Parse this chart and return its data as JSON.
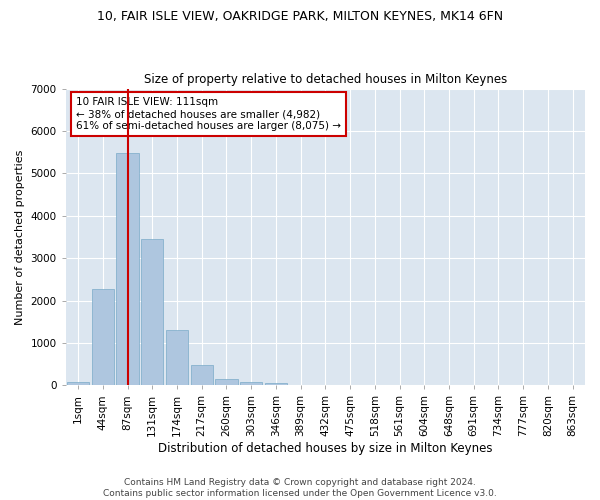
{
  "title1": "10, FAIR ISLE VIEW, OAKRIDGE PARK, MILTON KEYNES, MK14 6FN",
  "title2": "Size of property relative to detached houses in Milton Keynes",
  "xlabel": "Distribution of detached houses by size in Milton Keynes",
  "ylabel": "Number of detached properties",
  "footer1": "Contains HM Land Registry data © Crown copyright and database right 2024.",
  "footer2": "Contains public sector information licensed under the Open Government Licence v3.0.",
  "annotation_line1": "10 FAIR ISLE VIEW: 111sqm",
  "annotation_line2": "← 38% of detached houses are smaller (4,982)",
  "annotation_line3": "61% of semi-detached houses are larger (8,075) →",
  "bar_color": "#aec6df",
  "bar_edge_color": "#7aaac8",
  "red_line_color": "#cc0000",
  "ylim": [
    0,
    7000
  ],
  "yticks": [
    0,
    1000,
    2000,
    3000,
    4000,
    5000,
    6000,
    7000
  ],
  "categories": [
    "1sqm",
    "44sqm",
    "87sqm",
    "131sqm",
    "174sqm",
    "217sqm",
    "260sqm",
    "303sqm",
    "346sqm",
    "389sqm",
    "432sqm",
    "475sqm",
    "518sqm",
    "561sqm",
    "604sqm",
    "648sqm",
    "691sqm",
    "734sqm",
    "777sqm",
    "820sqm",
    "863sqm"
  ],
  "values": [
    80,
    2280,
    5480,
    3440,
    1310,
    470,
    155,
    80,
    50,
    0,
    0,
    0,
    0,
    0,
    0,
    0,
    0,
    0,
    0,
    0,
    0
  ],
  "plot_bg_color": "#dce6f0",
  "fig_bg_color": "#ffffff",
  "grid_color": "#ffffff",
  "property_bin_index": 2,
  "title1_fontsize": 9,
  "title2_fontsize": 8.5,
  "ylabel_fontsize": 8,
  "xlabel_fontsize": 8.5,
  "tick_fontsize": 7.5,
  "footer_fontsize": 6.5,
  "annot_fontsize": 7.5
}
